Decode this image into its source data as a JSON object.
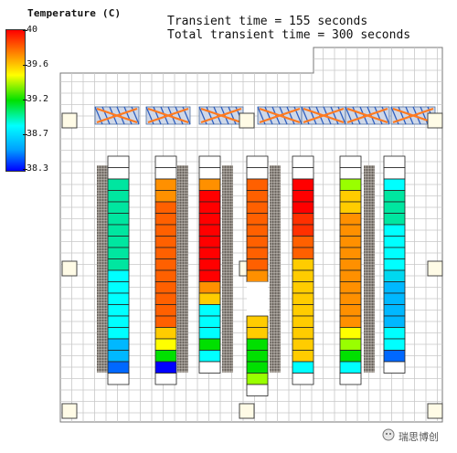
{
  "legend": {
    "title": "Temperature (C)",
    "ticks": [
      "40",
      "39.6",
      "39.2",
      "38.7",
      "38.3"
    ],
    "colors": [
      "#ff0000",
      "#ff9000",
      "#ffff00",
      "#00e000",
      "#00ffff",
      "#00a0ff",
      "#0000ff"
    ]
  },
  "header": {
    "line1": "Transient time = 155 seconds",
    "line2": "Total transient time = 300 seconds"
  },
  "watermark": "瑞思博创",
  "palette": {
    "R": "#ff0000",
    "r": "#ff3000",
    "O": "#ff6000",
    "o": "#ff9000",
    "Y": "#ffcc00",
    "y": "#ffff00",
    "L": "#99ff00",
    "G": "#00e000",
    "T": "#00e6a0",
    "C": "#00ffff",
    "c": "#00d8f0",
    "S": "#00b8ff",
    "B": "#0068ff",
    "D": "#0000ff",
    "W": "#ffffff"
  },
  "columns": [
    {
      "cells": "WWTTTTTTTTCCCCCCSSBW"
    },
    {
      "cells": "WWooOOOOOOOOOOOYyGDW"
    },
    {
      "cells": "WWoRRRRRRRRoYCCCGCW"
    },
    {
      "cells": "WWOOOOOOOOoxxxYYGGGLW"
    },
    {
      "cells": "WWRRRrrOOYYYYYYYYYCW"
    },
    {
      "cells": "WWLYYooooooooooyLGCW"
    },
    {
      "cells": "WWCTTTCCCCcSSSSCCBW"
    }
  ]
}
